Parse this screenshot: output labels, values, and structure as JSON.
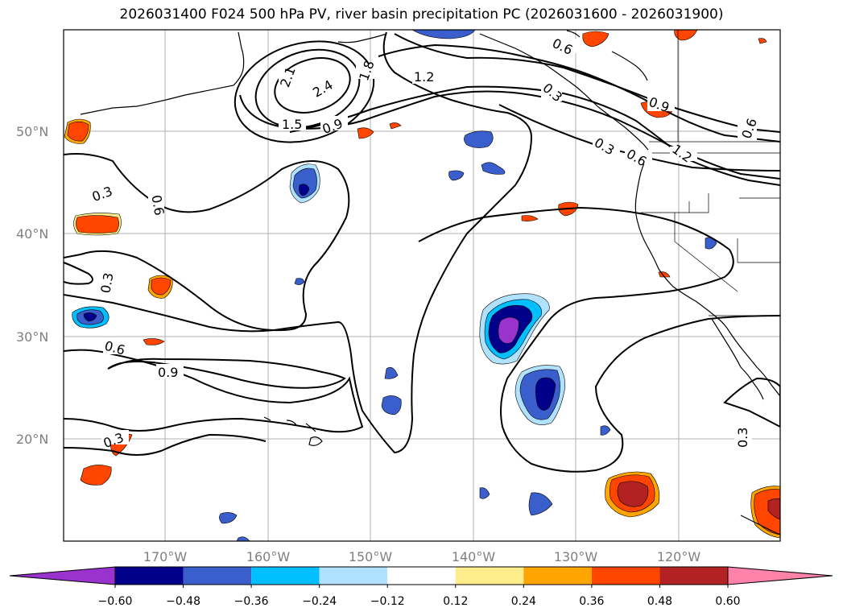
{
  "title": "2026031400 F024 500 hPa PV, river basin precipitation PC (2026031600 - 2026031900)",
  "axes": {
    "lat_labels": [
      "50°N",
      "40°N",
      "30°N",
      "20°N"
    ],
    "lon_labels": [
      "170°W",
      "160°W",
      "150°W",
      "140°W",
      "130°W",
      "120°W"
    ]
  },
  "contour_labels": [
    "2.4",
    "2.1",
    "1.8",
    "1.5",
    "1.2",
    "0.9",
    "0.6",
    "0.3",
    "0.6",
    "0.9",
    "0.3",
    "0.6",
    "0.9",
    "0.6",
    "1.2",
    "0.3",
    "0.6",
    "0.3",
    "0.3",
    "0.3"
  ],
  "colorbar": {
    "ticks": [
      "−0.60",
      "−0.48",
      "−0.36",
      "−0.24",
      "−0.12",
      "0.12",
      "0.24",
      "0.36",
      "0.48",
      "0.60"
    ],
    "colors": [
      "#9a32cd",
      "#00008b",
      "#3a5fcd",
      "#00bfff",
      "#b0e2ff",
      "#ffffff",
      "#ffec8b",
      "#ffa500",
      "#ff4500",
      "#b22222",
      "#ff82ab"
    ]
  },
  "colors": {
    "neg_extreme": "#9a32cd",
    "neg_strong": "#00008b",
    "neg_mid": "#3a5fcd",
    "neg_weak": "#00bfff",
    "neg_faint": "#b0e2ff",
    "pos_faint": "#ffec8b",
    "pos_weak": "#ffa500",
    "pos_mid": "#ff4500",
    "pos_strong": "#b22222",
    "pos_extreme": "#ff82ab",
    "grid": "#b0b0b0",
    "contour": "#000000"
  }
}
